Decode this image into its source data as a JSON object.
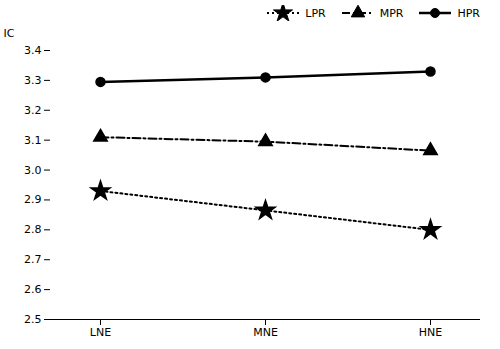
{
  "chart_data": {
    "type": "line",
    "categories": [
      "LNE",
      "MNE",
      "HNE"
    ],
    "series": [
      {
        "name": "LPR",
        "color": "black",
        "values": [
          2.93,
          2.865,
          2.8
        ],
        "marker": "star",
        "line_style": "dotted"
      },
      {
        "name": "MPR",
        "color": "black",
        "values": [
          3.11,
          3.095,
          3.065
        ],
        "marker": "triangle",
        "line_style": "dashdot"
      },
      {
        "name": "HPR",
        "color": "black",
        "values": [
          3.295,
          3.31,
          3.33
        ],
        "marker": "circle",
        "line_style": "solid"
      }
    ],
    "ylabel": "IC",
    "ylim": [
      2.5,
      3.4
    ],
    "yticks": [
      2.5,
      2.6,
      2.7,
      2.8,
      2.9,
      {
        "value": 3.0,
        "label": "3.0"
      },
      3.1,
      3.2,
      3.3,
      3.4
    ],
    "legend": "upper right"
  }
}
